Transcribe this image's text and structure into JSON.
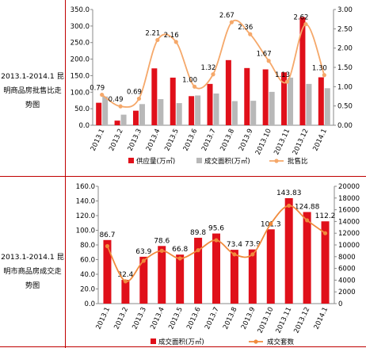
{
  "panel1": {
    "side_label": "2013.1-2014.1 昆明商品房批售比走势图",
    "legend": {
      "supply": "供应量(万㎡)",
      "deal": "成交面积(万㎡)",
      "ratio": "批售比"
    },
    "colors": {
      "supply": "#e0101a",
      "deal": "#b8b8b8",
      "ratio": "#f5a86a",
      "frame": "#c00000"
    }
  },
  "panel2": {
    "side_label": "2013.1-2014.1 昆明市商品房成交走势图",
    "legend": {
      "area": "成交面积(万㎡)",
      "units": "成交套数"
    },
    "colors": {
      "area": "#e0101a",
      "units": "#f08a3c"
    }
  },
  "chart_data": [
    {
      "type": "bar",
      "categories": [
        "2013.1",
        "2013.2",
        "2013.3",
        "2013.4",
        "2013.5",
        "2013.6",
        "2013.7",
        "2013.8",
        "2013.9",
        "2013.10",
        "2013.11",
        "2013.12",
        "2014.1"
      ],
      "series": [
        {
          "name": "供应量(万㎡)",
          "type": "bar",
          "axis": "left",
          "values": [
            68,
            14,
            44,
            172,
            144,
            88,
            125,
            197,
            173,
            169,
            160,
            327,
            145
          ]
        },
        {
          "name": "成交面积(万㎡)",
          "type": "bar",
          "axis": "left",
          "values": [
            87,
            32,
            64,
            79,
            67,
            90,
            96,
            73,
            74,
            101,
            144,
            125,
            112
          ]
        },
        {
          "name": "批售比",
          "type": "line",
          "axis": "right",
          "values": [
            0.79,
            0.49,
            0.69,
            2.21,
            2.16,
            1.0,
            1.32,
            2.67,
            2.36,
            1.67,
            1.13,
            2.62,
            1.3
          ],
          "labels": [
            "0.79",
            "0.49",
            "0.69",
            "2.21",
            "2.16",
            "1.00",
            "1.32",
            "2.67",
            "2.36",
            "1.67",
            "1.13",
            "2.62",
            "1.30"
          ]
        }
      ],
      "y_left": {
        "range": [
          0,
          350
        ],
        "ticks": [
          "0.0",
          "50.0",
          "100.0",
          "150.0",
          "200.0",
          "250.0",
          "300.0",
          "350.0"
        ]
      },
      "y_right": {
        "range": [
          0,
          3
        ],
        "ticks": [
          "0.00",
          "0.50",
          "1.00",
          "1.50",
          "2.00",
          "2.50",
          "3.00"
        ]
      },
      "legend_position": "bottom"
    },
    {
      "type": "bar",
      "categories": [
        "2013.1",
        "2013.2",
        "2013.3",
        "2013.4",
        "2013.5",
        "2013.6",
        "2013.7",
        "2013.8",
        "2013.9",
        "2013.10",
        "2013.11",
        "2013.12",
        "2014.1"
      ],
      "series": [
        {
          "name": "成交面积(万㎡)",
          "type": "bar",
          "axis": "left",
          "values": [
            86.7,
            32.4,
            63.9,
            78.6,
            66.8,
            89.8,
            95.6,
            73.4,
            73.9,
            101.3,
            143.83,
            124.88,
            112.2
          ],
          "labels": [
            "86.7",
            "32.4",
            "63.9",
            "78.6",
            "66.8",
            "89.8",
            "95.6",
            "73.4",
            "73.9",
            "101.3",
            "143.83",
            "124.88",
            "112.2"
          ]
        },
        {
          "name": "成交套数",
          "type": "line",
          "axis": "right",
          "values": [
            9800,
            3800,
            7300,
            9000,
            7700,
            9100,
            10800,
            8400,
            8400,
            13600,
            16700,
            14200,
            12000
          ]
        }
      ],
      "y_left": {
        "range": [
          0,
          160
        ],
        "ticks": [
          "0.0",
          "20.0",
          "40.0",
          "60.0",
          "80.0",
          "100.0",
          "120.0",
          "140.0",
          "160.0"
        ]
      },
      "y_right": {
        "range": [
          0,
          20000
        ],
        "ticks": [
          "0",
          "2000",
          "4000",
          "6000",
          "8000",
          "10000",
          "12000",
          "14000",
          "16000",
          "18000",
          "20000"
        ]
      },
      "legend_position": "bottom"
    }
  ]
}
